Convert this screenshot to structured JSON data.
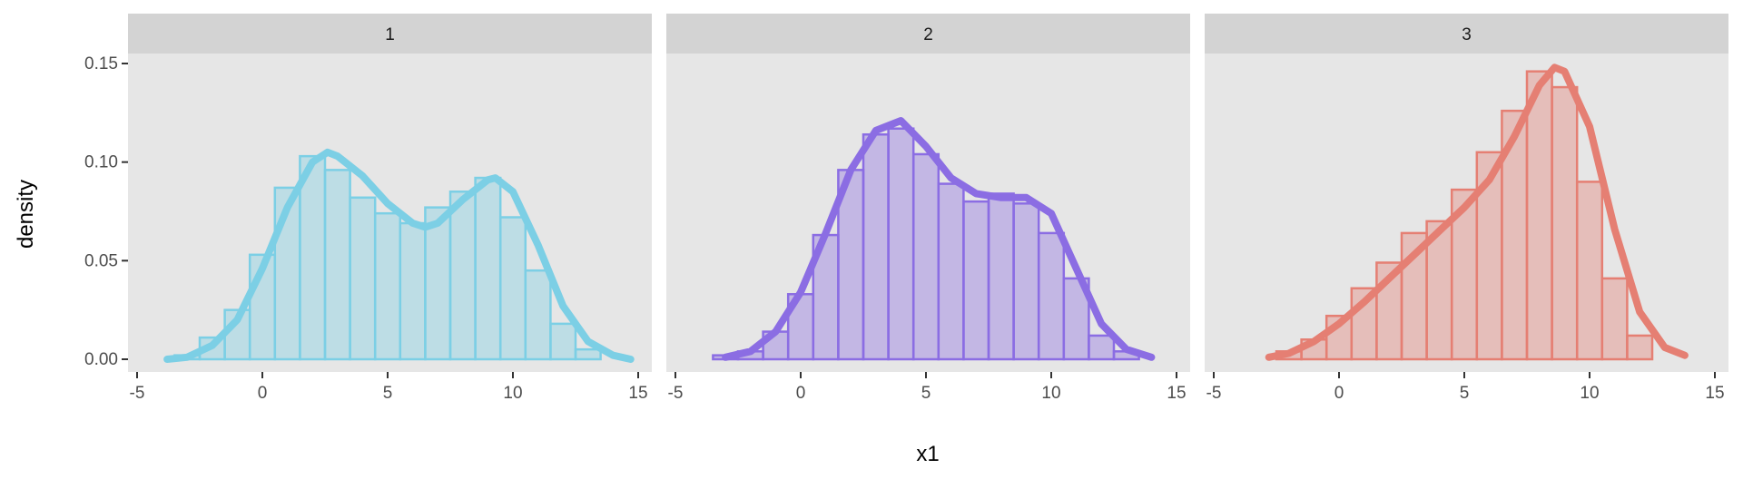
{
  "chart_data": {
    "type": "bar",
    "layout": "faceted-histogram-with-density-curve",
    "xlabel": "x1",
    "ylabel": "density",
    "xlim": [
      -5,
      15
    ],
    "ylim": [
      0,
      0.15
    ],
    "x_ticks": [
      -5,
      0,
      5,
      10,
      15
    ],
    "y_ticks": [
      0.0,
      0.05,
      0.1,
      0.15
    ],
    "y_tick_labels": [
      "0.00",
      "0.05",
      "0.10",
      "0.15"
    ],
    "grid": false,
    "legend": "none",
    "bin_width": 1,
    "background_color": "#e6e6e6",
    "strip_color": "#d3d3d3",
    "panels": [
      {
        "label": "1",
        "color": "#7ccfe5",
        "bin_centers": [
          -4,
          -3,
          -2,
          -1,
          0,
          1,
          2,
          3,
          4,
          5,
          6,
          7,
          8,
          9,
          10,
          11,
          12,
          13,
          14
        ],
        "densities": [
          0.0,
          0.002,
          0.011,
          0.025,
          0.053,
          0.087,
          0.103,
          0.096,
          0.082,
          0.074,
          0.069,
          0.077,
          0.085,
          0.092,
          0.072,
          0.045,
          0.018,
          0.005,
          0.0
        ],
        "curve_x": [
          -3.8,
          -3,
          -2,
          -1,
          0,
          1,
          2,
          2.6,
          3,
          4,
          5,
          6,
          6.5,
          7,
          8,
          9,
          9.3,
          10,
          11,
          12,
          13,
          14,
          14.7
        ],
        "curve_y": [
          0.0,
          0.001,
          0.007,
          0.02,
          0.046,
          0.077,
          0.1,
          0.105,
          0.103,
          0.093,
          0.079,
          0.069,
          0.067,
          0.069,
          0.081,
          0.091,
          0.092,
          0.085,
          0.058,
          0.027,
          0.009,
          0.002,
          0.0
        ]
      },
      {
        "label": "2",
        "color": "#8b6de3",
        "bin_centers": [
          -4,
          -3,
          -2,
          -1,
          0,
          1,
          2,
          3,
          4,
          5,
          6,
          7,
          8,
          9,
          10,
          11,
          12,
          13
        ],
        "densities": [
          0.0,
          0.002,
          0.004,
          0.014,
          0.033,
          0.063,
          0.096,
          0.114,
          0.117,
          0.104,
          0.089,
          0.08,
          0.084,
          0.079,
          0.064,
          0.041,
          0.012,
          0.004
        ],
        "curve_x": [
          -3,
          -2,
          -1,
          0,
          1,
          2,
          3,
          4,
          5,
          6,
          7,
          8,
          9,
          10,
          11,
          12,
          13,
          14
        ],
        "curve_y": [
          0.001,
          0.004,
          0.014,
          0.034,
          0.064,
          0.096,
          0.116,
          0.121,
          0.108,
          0.092,
          0.084,
          0.082,
          0.082,
          0.074,
          0.046,
          0.018,
          0.005,
          0.001
        ]
      },
      {
        "label": "3",
        "color": "#e57f73",
        "bin_centers": [
          -3,
          -2,
          -1,
          0,
          1,
          2,
          3,
          4,
          5,
          6,
          7,
          8,
          9,
          10,
          11,
          12,
          13
        ],
        "densities": [
          0.0,
          0.004,
          0.01,
          0.022,
          0.036,
          0.049,
          0.064,
          0.07,
          0.086,
          0.105,
          0.126,
          0.146,
          0.138,
          0.09,
          0.041,
          0.012,
          0.0
        ],
        "curve_x": [
          -2.8,
          -2,
          -1,
          0,
          1,
          2,
          3,
          4,
          5,
          6,
          7,
          8,
          8.6,
          9,
          10,
          11,
          12,
          13,
          13.8
        ],
        "curve_y": [
          0.001,
          0.003,
          0.009,
          0.018,
          0.029,
          0.041,
          0.053,
          0.065,
          0.077,
          0.091,
          0.113,
          0.139,
          0.148,
          0.146,
          0.118,
          0.066,
          0.024,
          0.006,
          0.002
        ]
      }
    ]
  }
}
